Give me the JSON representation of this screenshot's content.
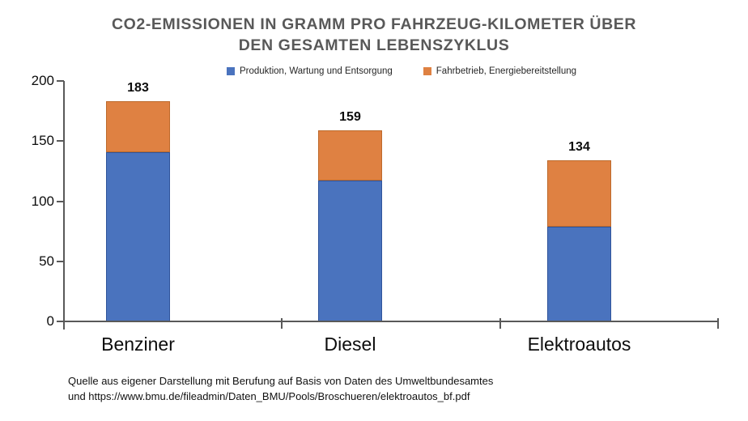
{
  "chart_data": {
    "type": "bar",
    "stacked": true,
    "title": "CO2-EMISSIONEN IN GRAMM PRO FAHRZEUG-KILOMETER ÜBER DEN GESAMTEN LEBENSZYKLUS",
    "title_lines": [
      "CO2-EMISSIONEN IN GRAMM PRO FAHRZEUG-KILOMETER ÜBER",
      "DEN GESAMTEN LEBENSZYKLUS"
    ],
    "categories": [
      "Benziner",
      "Diesel",
      "Elektroautos"
    ],
    "series": [
      {
        "name": "Produktion, Wartung und Entsorgung",
        "color": "#4a73be",
        "border_color": "#30549b",
        "values": [
          141,
          117,
          79
        ]
      },
      {
        "name": "Fahrbetrieb, Energiebereitstellung",
        "color": "#df8142",
        "border_color": "#bd6a2c",
        "values": [
          42,
          42,
          55
        ]
      }
    ],
    "totals": [
      "183",
      "159",
      "134"
    ],
    "xlabel": "",
    "ylabel": "",
    "ylim": [
      0,
      200
    ],
    "yticks": [
      "0",
      "50",
      "100",
      "150",
      "200"
    ],
    "grid": false,
    "legend_position": "top-center"
  },
  "footer": {
    "source_line1": "Quelle aus eigener Darstellung mit Berufung auf Basis von Daten des Umweltbundesamtes",
    "source_line2": "und https://www.bmu.de/fileadmin/Daten_BMU/Pools/Broschueren/elektroautos_bf.pdf"
  }
}
